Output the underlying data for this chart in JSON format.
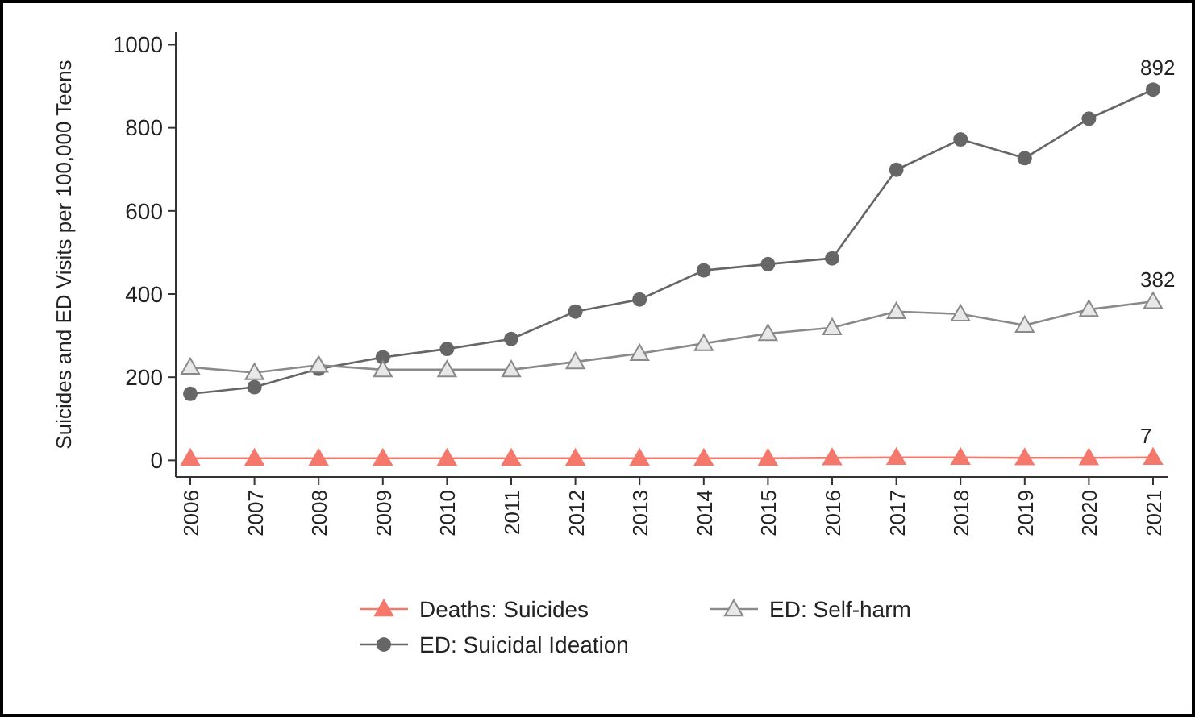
{
  "chart_data": {
    "type": "line",
    "ylabel": "Suicides and ED Visits per 100,000 Teens",
    "categories": [
      "2006",
      "2007",
      "2008",
      "2009",
      "2010",
      "2011",
      "2012",
      "2013",
      "2014",
      "2015",
      "2016",
      "2017",
      "2018",
      "2019",
      "2020",
      "2021"
    ],
    "ylim": [
      -40,
      1030
    ],
    "yticks": [
      0,
      200,
      400,
      600,
      800,
      1000
    ],
    "grid": false,
    "legend": "bottom",
    "series": [
      {
        "name": "Deaths: Suicides",
        "color": "#f4786c",
        "marker": "triangle",
        "values": [
          5,
          5,
          5,
          5,
          5,
          5,
          5,
          5,
          5,
          5,
          6,
          7,
          7,
          6,
          6,
          7
        ],
        "value_labels": [
          null,
          null,
          null,
          null,
          null,
          null,
          null,
          null,
          null,
          null,
          null,
          null,
          null,
          null,
          null,
          "7"
        ]
      },
      {
        "name": "ED: Self-harm",
        "color": "#8a8a8a",
        "marker": "triangle",
        "values": [
          224,
          211,
          229,
          218,
          218,
          218,
          237,
          257,
          281,
          305,
          319,
          358,
          352,
          325,
          363,
          382
        ],
        "value_labels": [
          null,
          null,
          null,
          null,
          null,
          null,
          null,
          null,
          null,
          null,
          null,
          null,
          null,
          null,
          null,
          "382"
        ]
      },
      {
        "name": "ED: Suicidal Ideation",
        "color": "#666666",
        "marker": "circle",
        "values": [
          160,
          176,
          220,
          248,
          268,
          292,
          358,
          387,
          457,
          472,
          486,
          699,
          772,
          727,
          822,
          892
        ],
        "value_labels": [
          null,
          null,
          null,
          null,
          null,
          null,
          null,
          null,
          null,
          null,
          null,
          null,
          null,
          null,
          null,
          "892"
        ]
      }
    ]
  }
}
